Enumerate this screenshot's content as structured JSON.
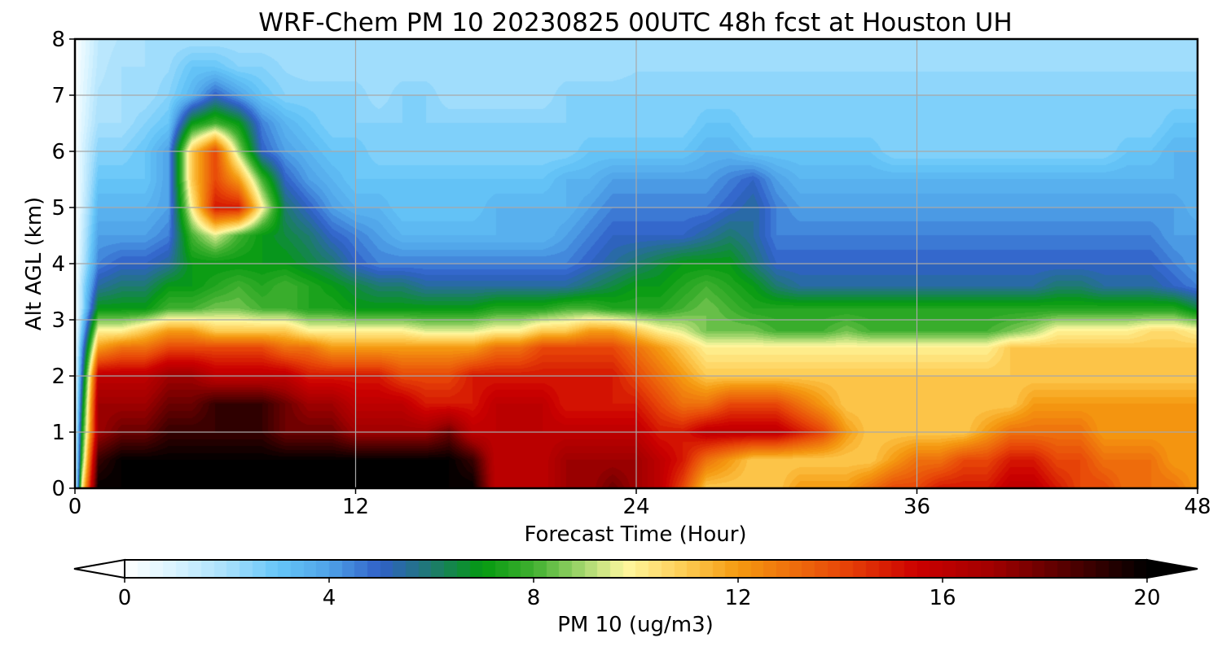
{
  "chart_data": {
    "type": "heatmap",
    "title": "WRF-Chem PM 10  20230825 00UTC 48h fcst at Houston UH",
    "xlabel": "Forecast Time (Hour)",
    "ylabel": "Alt AGL (km)",
    "xlim": [
      0,
      48
    ],
    "ylim": [
      0,
      8
    ],
    "xticks": [
      0,
      12,
      24,
      36,
      48
    ],
    "yticks": [
      0,
      1,
      2,
      3,
      4,
      5,
      6,
      7,
      8
    ],
    "grid": true,
    "colorbar": {
      "label": "PM 10  (ug/m3)",
      "ticks": [
        0,
        4,
        8,
        12,
        16,
        20
      ],
      "range": [
        0,
        20
      ],
      "extend": "both",
      "orientation": "horizontal",
      "colormap": [
        {
          "v": 0,
          "c": "#ffffff"
        },
        {
          "v": 1,
          "c": "#d8f3ff"
        },
        {
          "v": 2,
          "c": "#a8e0fc"
        },
        {
          "v": 3,
          "c": "#66c6f8"
        },
        {
          "v": 4,
          "c": "#4fa2e8"
        },
        {
          "v": 5,
          "c": "#3060c8"
        },
        {
          "v": 6,
          "c": "#1e7a70"
        },
        {
          "v": 7,
          "c": "#049a10"
        },
        {
          "v": 8,
          "c": "#40b030"
        },
        {
          "v": 9,
          "c": "#a8d870"
        },
        {
          "v": 9.8,
          "c": "#fff8a0"
        },
        {
          "v": 11,
          "c": "#fdca50"
        },
        {
          "v": 12,
          "c": "#f59a10"
        },
        {
          "v": 14,
          "c": "#e84808"
        },
        {
          "v": 15.5,
          "c": "#cc0000"
        },
        {
          "v": 17,
          "c": "#a00000"
        },
        {
          "v": 18.5,
          "c": "#500000"
        },
        {
          "v": 20,
          "c": "#000000"
        }
      ]
    },
    "x": [
      0,
      0.3,
      1,
      2,
      3,
      4,
      5,
      6,
      7,
      8,
      9,
      10,
      11,
      12,
      13,
      14,
      15,
      16,
      17,
      18,
      19,
      20,
      21,
      22,
      23,
      24,
      25,
      26,
      27,
      28,
      29,
      30,
      31,
      32,
      33,
      34,
      35,
      36,
      37,
      38,
      39,
      40,
      41,
      42,
      43,
      44,
      45,
      46,
      47,
      48
    ],
    "y": [
      0,
      0.5,
      1,
      1.5,
      2,
      2.5,
      2.8,
      3.2,
      3.6,
      4,
      4.5,
      5,
      5.5,
      6,
      6.5,
      7,
      7.5,
      8
    ],
    "z": [
      [
        0,
        10,
        20,
        20,
        20,
        20,
        20,
        20,
        20,
        20,
        20,
        20,
        20,
        20,
        20,
        20,
        20,
        20,
        20,
        16,
        16,
        16,
        17,
        17,
        18,
        17,
        16,
        14,
        11,
        11,
        11,
        11,
        12,
        12,
        12,
        13,
        14,
        14,
        15,
        15,
        15,
        16,
        16,
        15,
        14,
        14,
        13,
        13,
        13,
        12
      ],
      [
        0,
        8,
        19,
        20,
        20,
        20,
        20,
        20,
        20,
        20,
        20,
        20,
        20,
        20,
        20,
        20,
        20,
        20,
        19,
        16,
        16,
        16,
        17,
        17,
        17,
        17,
        16,
        15,
        13,
        12,
        11,
        11,
        11,
        11,
        11,
        11,
        12,
        13,
        13,
        14,
        14,
        15,
        15,
        14,
        14,
        13,
        13,
        13,
        12,
        12
      ],
      [
        0,
        7,
        17,
        18,
        18,
        19,
        19,
        19,
        19,
        19,
        18,
        18,
        18,
        17,
        17,
        17,
        17,
        18,
        16,
        16,
        16,
        16,
        16,
        16,
        16,
        16,
        15,
        15,
        16,
        16,
        16,
        16,
        15,
        14,
        12,
        11,
        11,
        11,
        11,
        11,
        12,
        13,
        13,
        13,
        13,
        12,
        12,
        12,
        12,
        12
      ],
      [
        0,
        6,
        17,
        17,
        17,
        18,
        18,
        19,
        19,
        19,
        18,
        17,
        17,
        16,
        16,
        16,
        15,
        15,
        15,
        16,
        16,
        16,
        15,
        15,
        15,
        15,
        14,
        13,
        13,
        14,
        14,
        14,
        13,
        12,
        11,
        11,
        11,
        11,
        11,
        11,
        11,
        11,
        12,
        12,
        12,
        12,
        12,
        12,
        12,
        12
      ],
      [
        0,
        5,
        16,
        16,
        16,
        17,
        17,
        16,
        16,
        16,
        16,
        15,
        15,
        15,
        15,
        14,
        14,
        14,
        15,
        15,
        15,
        15,
        15,
        15,
        15,
        14,
        13,
        12,
        11,
        11,
        11,
        11,
        11,
        11,
        11,
        11,
        11,
        11,
        11,
        11,
        11,
        11,
        11,
        11,
        11,
        11,
        11,
        11,
        11,
        11
      ],
      [
        0,
        4,
        12,
        13,
        13,
        14,
        14,
        14,
        14,
        14,
        13,
        13,
        12,
        12,
        12,
        12,
        12,
        12,
        12,
        13,
        13,
        14,
        14,
        14,
        14,
        13,
        12,
        11,
        10,
        10,
        10,
        10,
        10,
        10,
        10,
        10,
        10,
        10,
        10,
        10,
        10,
        11,
        11,
        11,
        11,
        11,
        11,
        11,
        11,
        11
      ],
      [
        0,
        3,
        10,
        10,
        11,
        12,
        12,
        11,
        11,
        11,
        11,
        10,
        10,
        10,
        10,
        10,
        9.5,
        9.5,
        9.5,
        10,
        10,
        11,
        11,
        12,
        12,
        11,
        10,
        9.5,
        8.5,
        8.5,
        8.5,
        8,
        8,
        8,
        8.5,
        8,
        8,
        8,
        8,
        8,
        8,
        8.5,
        9,
        10,
        10,
        10,
        10,
        10.5,
        10.5,
        10
      ],
      [
        0,
        2,
        7,
        7,
        7,
        8,
        8,
        8.5,
        8.5,
        8,
        8,
        7.5,
        7.5,
        7,
        7,
        7,
        7,
        7,
        7,
        7.5,
        7.5,
        7.5,
        8,
        8,
        7.5,
        7.5,
        7.5,
        8,
        8.5,
        8,
        7.5,
        7.5,
        7.5,
        7.5,
        7.5,
        7.5,
        7.5,
        7.5,
        7.5,
        7.5,
        7.5,
        7.5,
        7.5,
        7.5,
        7.5,
        7.5,
        7.5,
        7.5,
        7.5,
        6.5
      ],
      [
        0,
        2,
        5.5,
        6,
        6,
        7,
        7,
        7.5,
        8,
        7.5,
        8,
        7.5,
        7,
        6.5,
        6,
        6,
        5.5,
        5.5,
        5.5,
        5.5,
        5.5,
        5.5,
        5.5,
        6,
        6.5,
        7,
        7,
        7.5,
        8,
        7.5,
        7,
        6,
        5.5,
        5.5,
        5.5,
        5.5,
        5.5,
        5.5,
        5.5,
        5.5,
        5.5,
        5.5,
        5.5,
        6,
        6,
        5.5,
        5.5,
        5.5,
        5,
        4.5
      ],
      [
        0,
        1.5,
        4.5,
        5,
        5,
        5.5,
        7,
        7,
        7,
        7,
        7,
        6.5,
        6,
        5,
        4.5,
        4.5,
        4.5,
        4.5,
        4.5,
        4.5,
        4.5,
        4.5,
        4.5,
        5,
        5.5,
        6,
        6.5,
        7,
        7,
        7,
        6,
        5,
        5,
        5,
        5,
        5,
        5,
        5,
        5,
        5,
        5,
        5,
        5,
        5,
        5,
        5,
        5,
        5,
        4.5,
        4
      ],
      [
        0,
        1.3,
        4,
        4,
        4,
        4.5,
        8,
        9.5,
        8,
        7,
        6.5,
        6,
        5,
        4.5,
        4,
        3.5,
        3.5,
        3.5,
        3.5,
        3.5,
        3.5,
        3.5,
        4,
        4.5,
        5,
        5,
        5,
        5,
        5.5,
        6,
        5.5,
        4.5,
        4.5,
        4.5,
        4.5,
        4.5,
        4.5,
        4.5,
        4.5,
        4.5,
        4.5,
        4.5,
        4.5,
        4.5,
        4.5,
        4.5,
        4.5,
        4.5,
        4,
        4
      ],
      [
        0,
        1.1,
        3.5,
        3.5,
        3.5,
        4,
        10,
        15,
        15,
        10,
        6,
        5,
        4,
        3.5,
        3.5,
        3,
        3,
        3,
        3,
        3.5,
        3.5,
        3.5,
        3.5,
        4,
        4.5,
        4.5,
        4.5,
        4.5,
        4.5,
        5,
        5.5,
        4.5,
        4,
        4,
        4,
        4,
        4,
        4,
        4,
        4,
        4,
        4,
        4,
        4,
        4,
        4,
        4,
        4,
        4,
        3.5
      ],
      [
        0,
        1,
        3,
        3,
        3,
        4,
        11,
        14,
        12,
        8,
        5,
        4,
        3.5,
        3,
        3,
        3,
        3,
        3,
        3,
        3,
        3,
        3,
        3.5,
        3.5,
        4,
        4,
        4,
        4,
        4,
        4.5,
        5,
        4,
        3.5,
        3.5,
        3.5,
        3.5,
        3.5,
        3.5,
        3.5,
        3.5,
        3.5,
        3.5,
        3.5,
        3.5,
        3.5,
        3.5,
        3.5,
        3.5,
        3.5,
        3.5
      ],
      [
        0,
        1,
        2.5,
        2.5,
        3,
        4,
        11,
        14,
        9,
        5,
        4,
        3.5,
        3,
        3,
        2.5,
        2.5,
        2.5,
        2.5,
        2.5,
        2.5,
        2.5,
        2.5,
        2.5,
        3,
        3,
        3,
        3,
        3,
        3.5,
        3.5,
        3,
        3,
        3,
        3,
        3,
        3,
        2.5,
        2.5,
        2.5,
        2.5,
        2.5,
        2.5,
        2.5,
        2.5,
        2.5,
        2.5,
        3,
        3,
        3.5,
        3.5
      ],
      [
        0,
        0.8,
        2,
        2,
        2.5,
        3,
        7,
        8,
        7,
        4.5,
        3.5,
        3,
        2.5,
        2.5,
        2.5,
        2.5,
        2.5,
        2.5,
        2.5,
        2.5,
        2.5,
        2.5,
        2.5,
        2.5,
        2.5,
        2.5,
        2.5,
        2.5,
        3,
        3,
        2.5,
        2.5,
        2.5,
        2.5,
        2.5,
        2.5,
        2.5,
        2.5,
        2.5,
        2.5,
        2.5,
        2.5,
        2.5,
        2.5,
        2.5,
        2.5,
        2.5,
        2.5,
        3,
        3
      ],
      [
        0,
        0.7,
        1.8,
        2,
        2,
        2.5,
        3.5,
        5,
        4,
        3,
        2.5,
        2.5,
        2.5,
        2.5,
        2,
        2.5,
        2.5,
        2,
        2,
        2,
        2,
        2,
        2.5,
        2.5,
        2.5,
        2.5,
        2.5,
        2.5,
        2.5,
        2.5,
        2.5,
        2.5,
        2.5,
        2.5,
        2.5,
        2.5,
        2.5,
        2.5,
        2.5,
        2.5,
        2.5,
        2.5,
        2.5,
        2.5,
        2.5,
        2.5,
        2.5,
        2.5,
        2.5,
        2.5
      ],
      [
        0,
        0.6,
        1.6,
        2,
        2,
        2.2,
        3,
        3,
        2.5,
        2.5,
        2.2,
        2,
        2,
        2,
        2,
        2,
        2,
        2,
        2,
        2,
        2,
        2,
        2,
        2,
        2,
        2.2,
        2.2,
        2.2,
        2.2,
        2.2,
        2.2,
        2.2,
        2.2,
        2.2,
        2.2,
        2.2,
        2.2,
        2.2,
        2.2,
        2.2,
        2.2,
        2.2,
        2.2,
        2.2,
        2.2,
        2.2,
        2.2,
        2.2,
        2.2,
        2.2
      ],
      [
        0,
        0.5,
        1.5,
        1.8,
        2,
        2,
        2,
        2,
        2,
        2,
        2,
        2,
        2,
        2,
        2,
        2,
        2,
        2,
        2,
        2,
        2,
        2,
        2,
        2,
        2,
        2,
        2,
        2,
        2,
        2,
        2,
        2,
        2,
        2,
        2,
        2,
        2,
        2,
        2,
        2,
        2,
        2,
        2,
        2,
        2,
        2,
        2,
        2,
        2,
        2
      ]
    ]
  }
}
